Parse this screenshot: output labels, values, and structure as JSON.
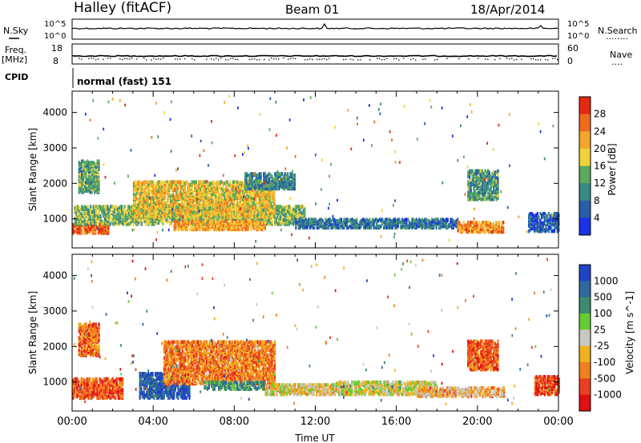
{
  "header": {
    "station": "Halley (fitACF)",
    "beam": "Beam 01",
    "date": "18/Apr/2014"
  },
  "strips": {
    "sky_label": "N.Sky",
    "search_label": "N.Search",
    "search_dots": "........",
    "freq_label_1": "Freq.",
    "freq_label_2": "[MHz]",
    "nave_label": "Nave",
    "nave_dots": "....",
    "cpid_label": "CPID",
    "cpid_text": "normal (fast) 151",
    "sky_ticks": [
      "10^5",
      "10^0"
    ],
    "search_ticks": [
      "10^5",
      "10^0"
    ],
    "freq_ticks": [
      "18",
      "8"
    ],
    "nave_ticks": [
      "60",
      "0"
    ]
  },
  "chart_data": [
    {
      "type": "heatmap",
      "ylabel": "Slant Range [km]",
      "ylim": [
        180,
        4600
      ],
      "yticks": [
        "1000",
        "2000",
        "3000",
        "4000"
      ],
      "colorbar_label": "Power [dB]",
      "colorbar_ticks": [
        "4",
        "8",
        "12",
        "16",
        "20",
        "24",
        "28"
      ],
      "colors": [
        "#1a33e6",
        "#275ea8",
        "#3a8a86",
        "#5aaa5e",
        "#f2d23a",
        "#f2a62a",
        "#ef6a1c",
        "#e22a10"
      ],
      "regions": [
        {
          "t0": 0.0,
          "t1": 1.8,
          "r0": 650,
          "r1": 950,
          "level": 0.85
        },
        {
          "t0": 0.1,
          "t1": 11.5,
          "r0": 900,
          "r1": 1400,
          "level": 0.45
        },
        {
          "t0": 3.0,
          "t1": 10.0,
          "r0": 1100,
          "r1": 2100,
          "level": 0.6
        },
        {
          "t0": 5.0,
          "t1": 9.5,
          "r0": 750,
          "r1": 1000,
          "level": 0.7
        },
        {
          "t0": 11.0,
          "t1": 19.0,
          "r0": 800,
          "r1": 1050,
          "level": 0.25
        },
        {
          "t0": 19.0,
          "t1": 21.3,
          "r0": 680,
          "r1": 950,
          "level": 0.75
        },
        {
          "t0": 0.3,
          "t1": 1.3,
          "r0": 1800,
          "r1": 2700,
          "level": 0.4
        },
        {
          "t0": 8.5,
          "t1": 11.0,
          "r0": 1900,
          "r1": 2350,
          "level": 0.3
        },
        {
          "t0": 19.5,
          "t1": 21.0,
          "r0": 1600,
          "r1": 2400,
          "level": 0.35
        },
        {
          "t0": 22.5,
          "t1": 24.0,
          "r0": 700,
          "r1": 1200,
          "level": 0.2
        }
      ]
    },
    {
      "type": "heatmap",
      "xlabel": "Time UT",
      "ylabel": "Slant Range [km]",
      "xlim": [
        0,
        24
      ],
      "xticks": [
        "00:00",
        "04:00",
        "08:00",
        "12:00",
        "16:00",
        "20:00",
        "00:00"
      ],
      "ylim": [
        180,
        4600
      ],
      "yticks": [
        "1000",
        "2000",
        "3000",
        "4000"
      ],
      "colorbar_label": "Velocity [m s^-1]",
      "colorbar_ticks": [
        "1000",
        "500",
        "100",
        "25",
        "-25",
        "-100",
        "-500",
        "-1000"
      ],
      "colors": [
        "#1f45c4",
        "#2e6a9e",
        "#3e8a6e",
        "#66cc33",
        "#c8c8c0",
        "#f0b020",
        "#f08020",
        "#e84020",
        "#e01010"
      ],
      "regions": [
        {
          "t0": 0.0,
          "t1": 2.5,
          "r0": 600,
          "r1": 1150,
          "level": 0.8
        },
        {
          "t0": 0.3,
          "t1": 1.3,
          "r0": 1800,
          "r1": 2700,
          "level": 0.75
        },
        {
          "t0": 3.3,
          "t1": 5.8,
          "r0": 600,
          "r1": 1300,
          "level": 0.1
        },
        {
          "t0": 4.5,
          "t1": 10.0,
          "r0": 1000,
          "r1": 2200,
          "level": 0.72
        },
        {
          "t0": 6.5,
          "t1": 9.5,
          "r0": 850,
          "r1": 1050,
          "level": 0.3
        },
        {
          "t0": 9.5,
          "t1": 13.5,
          "r0": 700,
          "r1": 1000,
          "level": 0.55
        },
        {
          "t0": 13.0,
          "t1": 18.0,
          "r0": 700,
          "r1": 1050,
          "level": 0.5
        },
        {
          "t0": 17.0,
          "t1": 21.3,
          "r0": 650,
          "r1": 900,
          "level": 0.62
        },
        {
          "t0": 19.5,
          "t1": 21.0,
          "r0": 1400,
          "r1": 2200,
          "level": 0.8
        },
        {
          "t0": 22.8,
          "t1": 24.0,
          "r0": 700,
          "r1": 1200,
          "level": 0.85
        }
      ]
    }
  ]
}
